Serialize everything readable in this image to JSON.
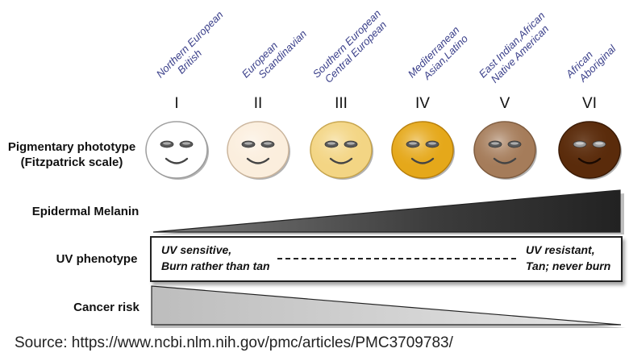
{
  "populations": [
    {
      "line1": "Northern European",
      "line2": "British"
    },
    {
      "line1": "European",
      "line2": "Scandinavian"
    },
    {
      "line1": "Southern European",
      "line2": "Central European"
    },
    {
      "line1": "Mediterranean",
      "line2": "Asian,Latino"
    },
    {
      "line1": "East Indian,African",
      "line2": "Native American"
    },
    {
      "line1": "African",
      "line2": "Aboriginal"
    }
  ],
  "phototypes": [
    {
      "numeral": "I",
      "skin": "#ffffff",
      "rim": "#9a9a9a"
    },
    {
      "numeral": "II",
      "skin": "#fbeedd",
      "rim": "#c9b39a"
    },
    {
      "numeral": "III",
      "skin": "#f3d584",
      "rim": "#c6a34a"
    },
    {
      "numeral": "IV",
      "skin": "#e5a81a",
      "rim": "#b77e0a"
    },
    {
      "numeral": "V",
      "skin": "#a57c5a",
      "rim": "#7d5a3d"
    },
    {
      "numeral": "VI",
      "skin": "#5a2b0b",
      "rim": "#3a1a05"
    }
  ],
  "rows": {
    "pigmentary_line1": "Pigmentary phototype",
    "pigmentary_line2": "(Fitzpatrick scale)",
    "melanin": "Epidermal Melanin",
    "uv": "UV phenotype",
    "cancer": "Cancer risk"
  },
  "uv_phenotype": {
    "left_line1": "UV sensitive,",
    "left_line2": "Burn rather than tan",
    "right_line1": "UV resistant,",
    "right_line2": "Tan; never burn"
  },
  "source": "Source: https://www.ncbi.nlm.nih.gov/pmc/articles/PMC3709783/"
}
